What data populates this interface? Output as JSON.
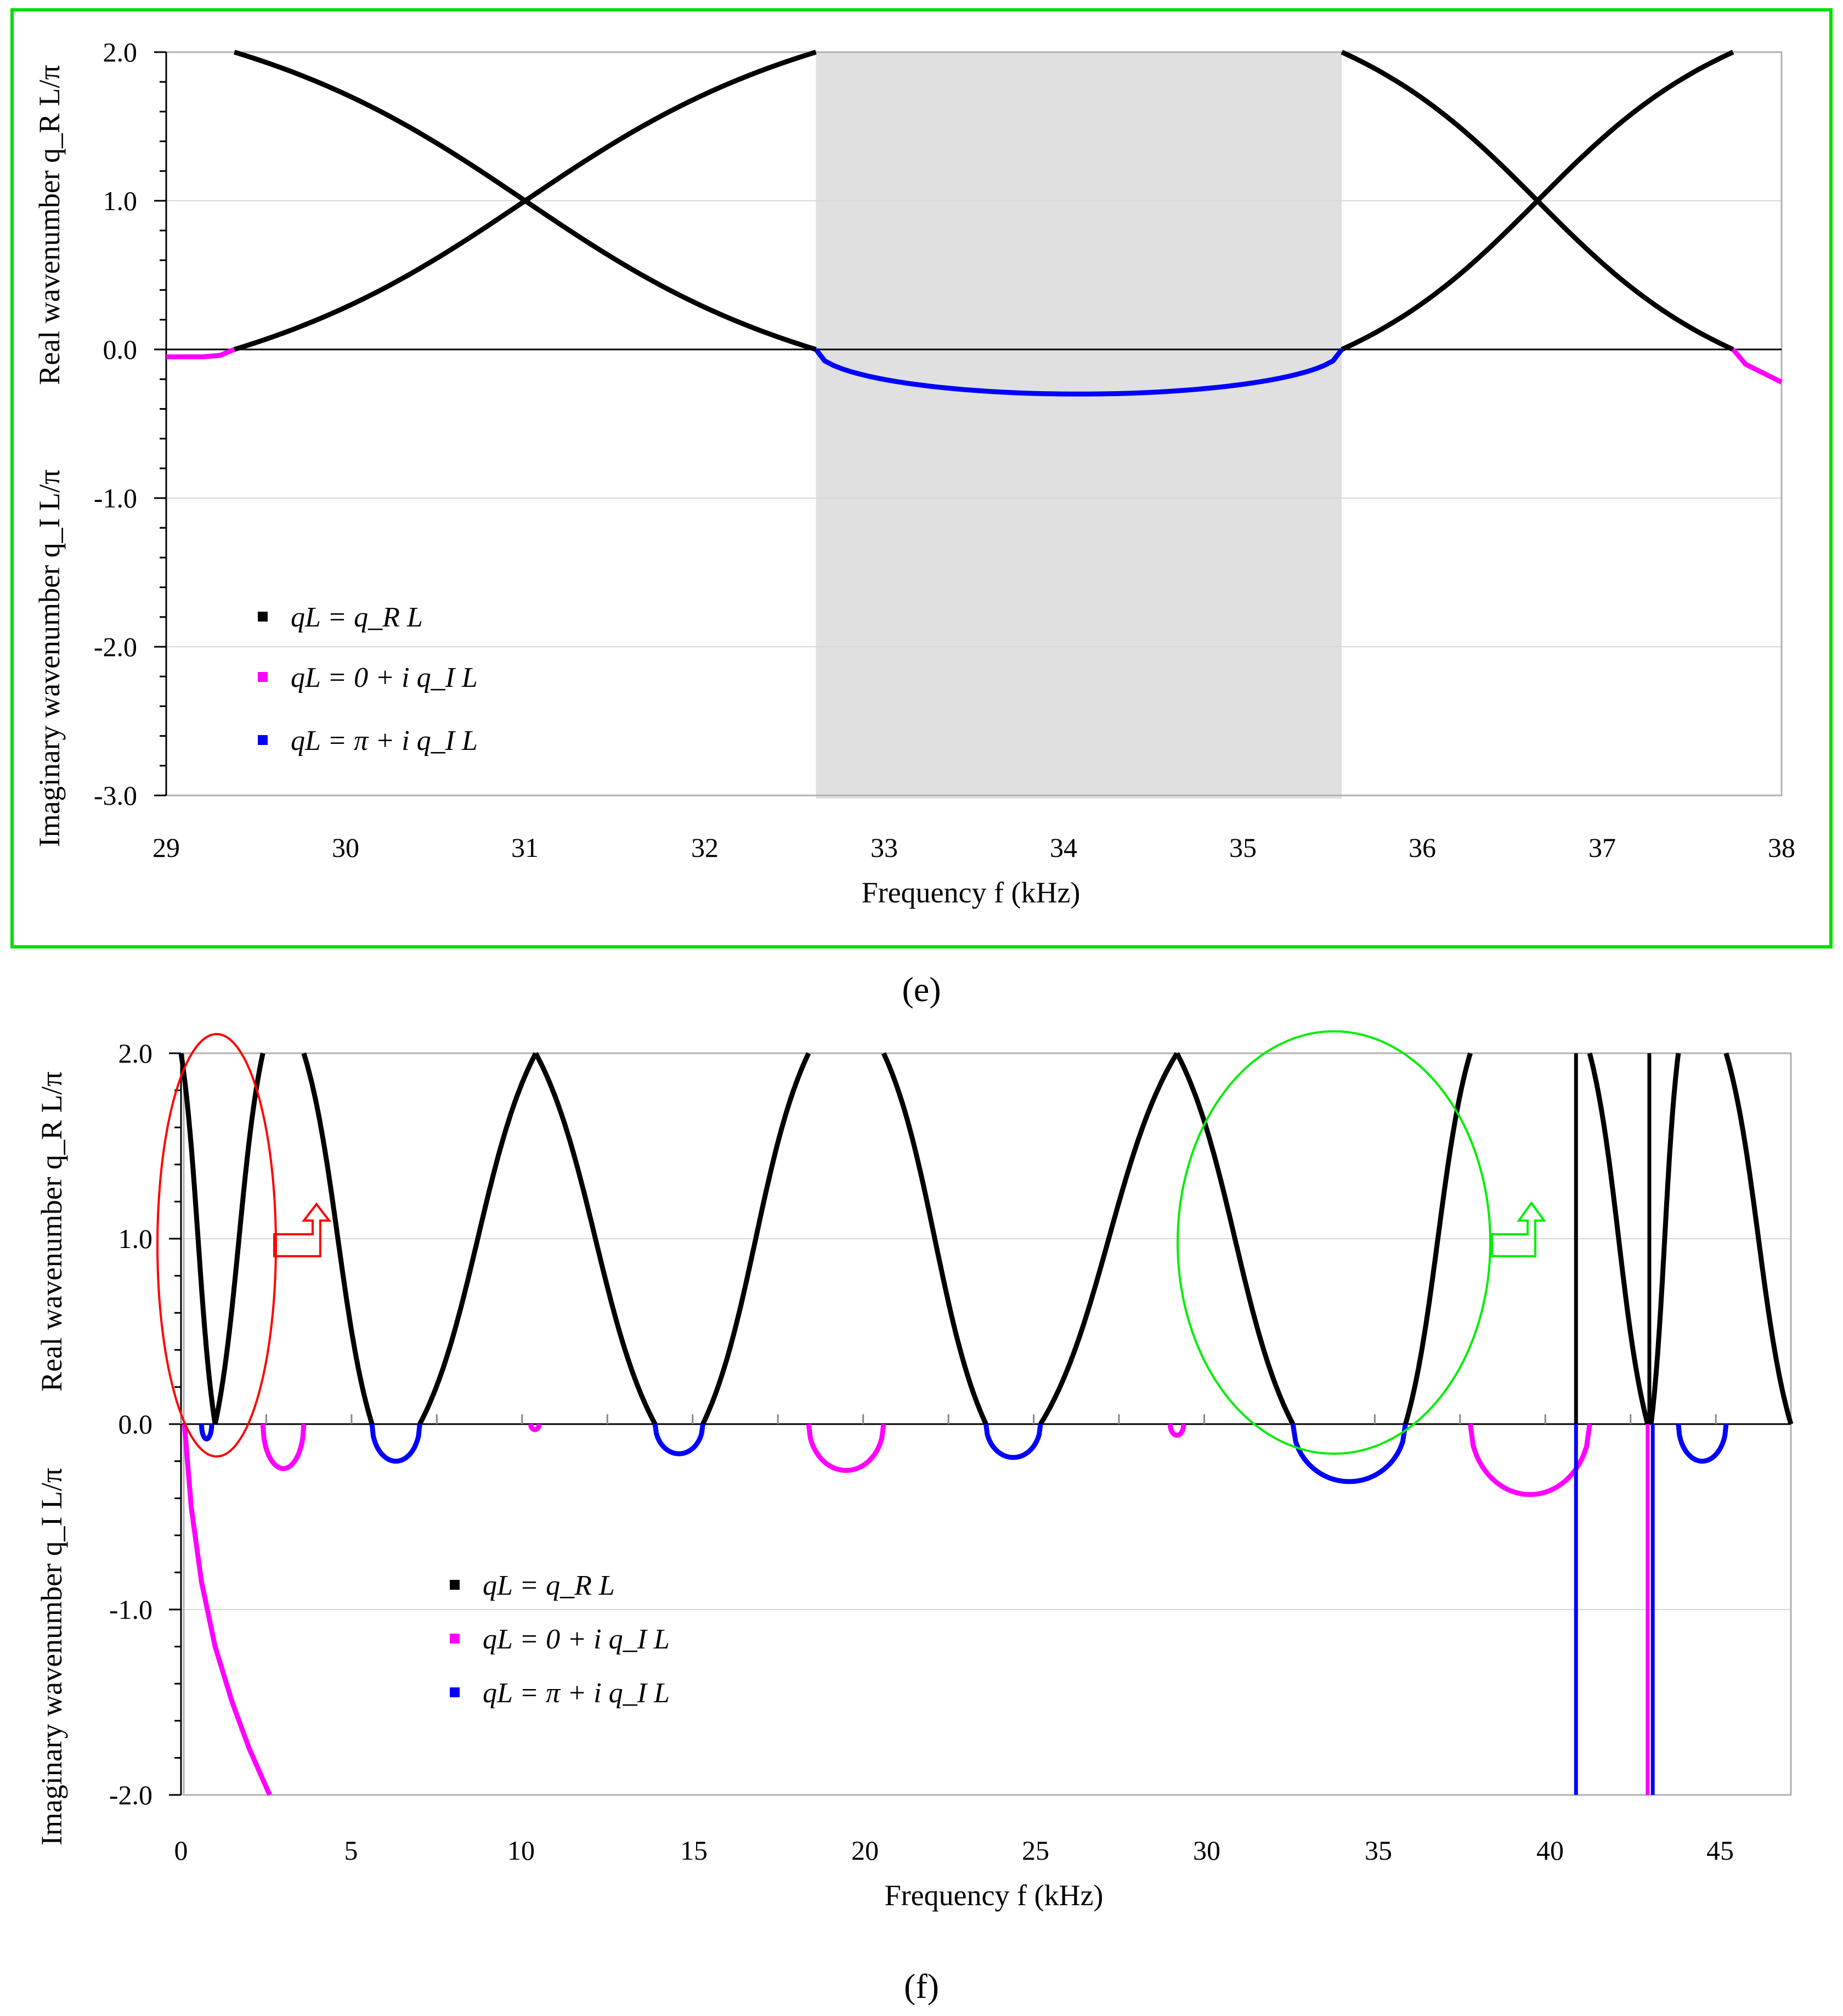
{
  "colors": {
    "real": "#000000",
    "imag_zero": "#ff00ff",
    "imag_pi": "#0000ff",
    "bandgap_fill": "#e0e0e0",
    "frame_green": "#00dd00",
    "ellipse_red": "#ff0000",
    "ellipse_green": "#00ee00",
    "gridline": "#d8d8d8"
  },
  "legend": {
    "real": "qL = q_R L",
    "imag_zero": "qL = 0 + i q_I L",
    "imag_pi": "qL = π + i q_I L"
  },
  "chart_data": [
    {
      "panel": "(e)",
      "type": "scatter",
      "xlabel": "Frequency  f (kHz)",
      "ylabel_real": "Real wavenumber  q_R L/π",
      "ylabel_imag": "Imaginary wavenumber  q_I L/π",
      "xlim": [
        29,
        38
      ],
      "ylim": [
        -3.0,
        2.0
      ],
      "xticks": [
        "29",
        "30",
        "31",
        "32",
        "33",
        "34",
        "35",
        "36",
        "37",
        "38"
      ],
      "yticks": [
        "2.0",
        "1.0",
        "0.0",
        "-1.0",
        "-2.0",
        "-3.0"
      ],
      "bandgap_shaded": [
        32.62,
        35.55
      ],
      "series": [
        {
          "name": "qL = q_R L",
          "kind": "real",
          "band_edges": [
            [
              29.38,
              32.62
            ],
            [
              35.55,
              37.73
            ]
          ]
        },
        {
          "name": "qL = 0 + i q_I L",
          "kind": "imag_zero",
          "curves": [
            {
              "x": [
                29.0,
                29.2,
                29.3,
                29.38
              ],
              "y": [
                -0.05,
                -0.05,
                -0.04,
                0.0
              ]
            },
            {
              "x": [
                37.73,
                37.8,
                37.9,
                38.0
              ],
              "y": [
                0.0,
                -0.1,
                -0.16,
                -0.22
              ]
            }
          ]
        },
        {
          "name": "qL = π + i q_I L",
          "kind": "imag_pi",
          "curves": [
            {
              "f1": 32.62,
              "f2": 35.55,
              "depth": 0.3
            }
          ]
        }
      ]
    },
    {
      "panel": "(f)",
      "type": "scatter",
      "xlabel": "Frequency  f (kHz)",
      "ylabel_real": "Real wavenumber  q_R L/π",
      "ylabel_imag": "Imaginary wavenumber  q_I L/π",
      "xlim": [
        0,
        47.2
      ],
      "ylim": [
        -2.0,
        2.0
      ],
      "xticks": [
        "0",
        "5",
        "10",
        "15",
        "20",
        "25",
        "30",
        "35",
        "40",
        "45"
      ],
      "yticks": [
        "2.0",
        "1.0",
        "0.0",
        "-1.0",
        "-2.0"
      ],
      "series": [
        {
          "name": "qL = q_R L",
          "kind": "real",
          "bands": [
            [
              0.0,
              1.0,
              -1
            ],
            [
              1.0,
              2.4,
              1
            ],
            [
              3.6,
              5.6,
              -1
            ],
            [
              7.0,
              10.4,
              1
            ],
            [
              10.4,
              13.9,
              -1
            ],
            [
              15.3,
              18.4,
              1
            ],
            [
              20.6,
              23.6,
              -1
            ],
            [
              25.2,
              29.2,
              1
            ],
            [
              29.2,
              32.6,
              -1
            ],
            [
              35.9,
              37.8,
              1
            ],
            [
              41.3,
              43.0,
              -1
            ],
            [
              43.1,
              43.9,
              1
            ],
            [
              45.3,
              47.2,
              -1
            ]
          ],
          "vertical_lines": [
            40.9,
            43.05
          ]
        },
        {
          "name": "qL = 0 + i q_I L",
          "kind": "imag_zero",
          "gaps": [
            [
              2.4,
              3.6,
              0.24
            ],
            [
              10.25,
              10.5,
              0.03
            ],
            [
              18.4,
              20.6,
              0.25
            ],
            [
              29.0,
              29.4,
              0.06
            ],
            [
              37.8,
              41.3,
              0.38
            ]
          ],
          "curves": [
            {
              "x": [
                0.1,
                0.3,
                0.6,
                1.0,
                1.5,
                2.0,
                2.6
              ],
              "y": [
                0.0,
                -0.45,
                -0.85,
                -1.2,
                -1.5,
                -1.75,
                -2.0
              ]
            }
          ],
          "vertical_lines": [
            43.0
          ]
        },
        {
          "name": "qL = π + i q_I L",
          "kind": "imag_pi",
          "gaps": [
            [
              0.6,
              0.9,
              0.08
            ],
            [
              5.6,
              7.0,
              0.2
            ],
            [
              13.9,
              15.3,
              0.16
            ],
            [
              23.6,
              25.2,
              0.18
            ],
            [
              32.6,
              35.9,
              0.31
            ],
            [
              43.9,
              45.3,
              0.2
            ]
          ],
          "vertical_lines": [
            40.9,
            43.15
          ]
        }
      ]
    }
  ]
}
